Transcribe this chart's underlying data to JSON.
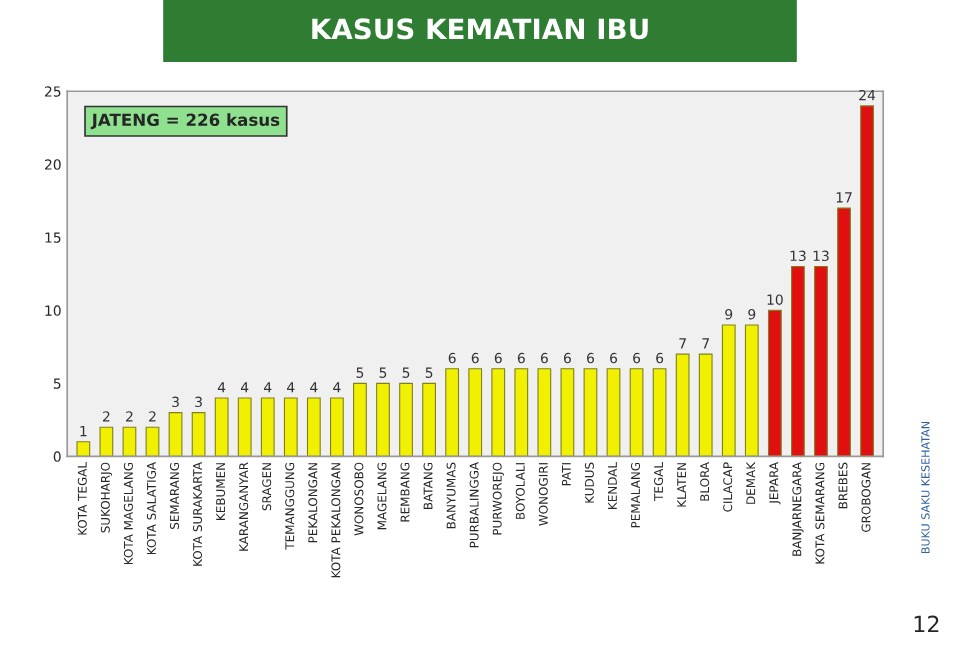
{
  "chart_data": {
    "type": "bar",
    "title": "KASUS KEMATIAN IBU",
    "categories": [
      "KOTA TEGAL",
      "SUKOHARJO",
      "KOTA MAGELANG",
      "KOTA SALATIGA",
      "SEMARANG",
      "KOTA SURAKARTA",
      "KEBUMEN",
      "KARANGANYAR",
      "SRAGEN",
      "TEMANGGUNG",
      "PEKALONGAN",
      "KOTA PEKALONGAN",
      "WONOSOBO",
      "MAGELANG",
      "REMBANG",
      "BATANG",
      "BANYUMAS",
      "PURBALINGGA",
      "PURWOREJO",
      "BOYOLALI",
      "WONOGIRI",
      "PATI",
      "KUDUS",
      "KENDAL",
      "PEMALANG",
      "TEGAL",
      "KLATEN",
      "BLORA",
      "CILACAP",
      "DEMAK",
      "JEPARA",
      "BANJARNEGARA",
      "KOTA SEMARANG",
      "BREBES",
      "GROBOGAN"
    ],
    "values": [
      1,
      2,
      2,
      2,
      3,
      3,
      4,
      4,
      4,
      4,
      4,
      4,
      5,
      5,
      5,
      5,
      6,
      6,
      6,
      6,
      6,
      6,
      6,
      6,
      6,
      6,
      7,
      7,
      9,
      9,
      10,
      13,
      13,
      17,
      24
    ],
    "colors": [
      "#f0f000",
      "#f0f000",
      "#f0f000",
      "#f0f000",
      "#f0f000",
      "#f0f000",
      "#f0f000",
      "#f0f000",
      "#f0f000",
      "#f0f000",
      "#f0f000",
      "#f0f000",
      "#f0f000",
      "#f0f000",
      "#f0f000",
      "#f0f000",
      "#f0f000",
      "#f0f000",
      "#f0f000",
      "#f0f000",
      "#f0f000",
      "#f0f000",
      "#f0f000",
      "#f0f000",
      "#f0f000",
      "#f0f000",
      "#f0f000",
      "#f0f000",
      "#f0f000",
      "#f0f000",
      "#e01010",
      "#e01010",
      "#e01010",
      "#e01010",
      "#e01010"
    ],
    "ylim": [
      0,
      25
    ],
    "yticks": [
      0,
      5,
      10,
      15,
      20,
      25
    ],
    "data_labels": true,
    "grid": false,
    "annotations": [
      "JATENG = 226 kasus",
      "BUKU SAKU KESEHATAN",
      "12"
    ]
  }
}
